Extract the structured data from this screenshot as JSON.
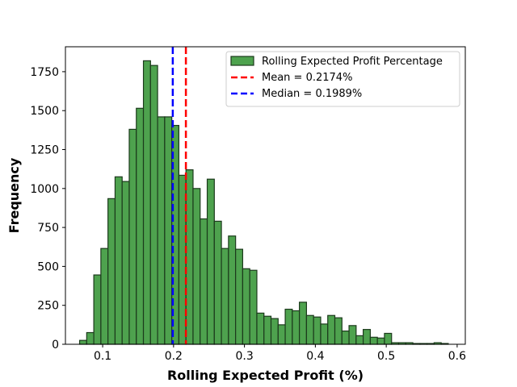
{
  "chart_data": {
    "type": "bar",
    "title": "",
    "xlabel": "Rolling Expected Profit (%)",
    "ylabel": "Frequency",
    "xlim": [
      0.0475,
      0.6115
    ],
    "ylim": [
      0,
      1910
    ],
    "xticks": [
      0.1,
      0.2,
      0.3,
      0.4,
      0.5,
      0.6
    ],
    "xtick_labels": [
      "0.1",
      "0.2",
      "0.3",
      "0.4",
      "0.5",
      "0.6"
    ],
    "yticks": [
      0,
      250,
      500,
      750,
      1000,
      1250,
      1500,
      1750
    ],
    "ytick_labels": [
      "0",
      "250",
      "500",
      "750",
      "1000",
      "1250",
      "1500",
      "1750"
    ],
    "grid": false,
    "legend_position": "top-right",
    "bar_color": "#4ea24e",
    "bar_edge_color": "#1c3a1c",
    "series": [
      {
        "name": "Rolling Expected Profit Percentage",
        "bin_edges": [
          0.0675,
          0.0775,
          0.0875,
          0.0975,
          0.1075,
          0.1175,
          0.1275,
          0.1375,
          0.1475,
          0.1575,
          0.1675,
          0.1775,
          0.1875,
          0.1975,
          0.2075,
          0.2175,
          0.2275,
          0.2375,
          0.2475,
          0.2575,
          0.2675,
          0.2775,
          0.2875,
          0.2975,
          0.3075,
          0.3175,
          0.3275,
          0.3375,
          0.3475,
          0.3575,
          0.3675,
          0.3775,
          0.3875,
          0.3975,
          0.4075,
          0.4175,
          0.4275,
          0.4375,
          0.4475,
          0.4575,
          0.4675,
          0.4775,
          0.4875,
          0.4975,
          0.5075,
          0.5175,
          0.5275,
          0.5375,
          0.5475,
          0.5575,
          0.5675,
          0.5775,
          0.5875
        ],
        "values": [
          25,
          75,
          445,
          615,
          935,
          1075,
          1045,
          1380,
          1515,
          1820,
          1790,
          1460,
          1460,
          1405,
          1085,
          1120,
          1000,
          805,
          1060,
          790,
          615,
          695,
          610,
          485,
          475,
          200,
          180,
          165,
          125,
          225,
          215,
          270,
          185,
          175,
          130,
          185,
          170,
          85,
          120,
          55,
          95,
          45,
          40,
          70,
          10,
          10,
          10,
          5,
          5,
          5,
          10,
          5
        ]
      }
    ],
    "lines": [
      {
        "name": "Mean = 0.2174%",
        "x": 0.2174,
        "color": "#ff0000",
        "style": "dashed"
      },
      {
        "name": "Median = 0.1989%",
        "x": 0.1989,
        "color": "#0000ff",
        "style": "dashed"
      }
    ]
  }
}
